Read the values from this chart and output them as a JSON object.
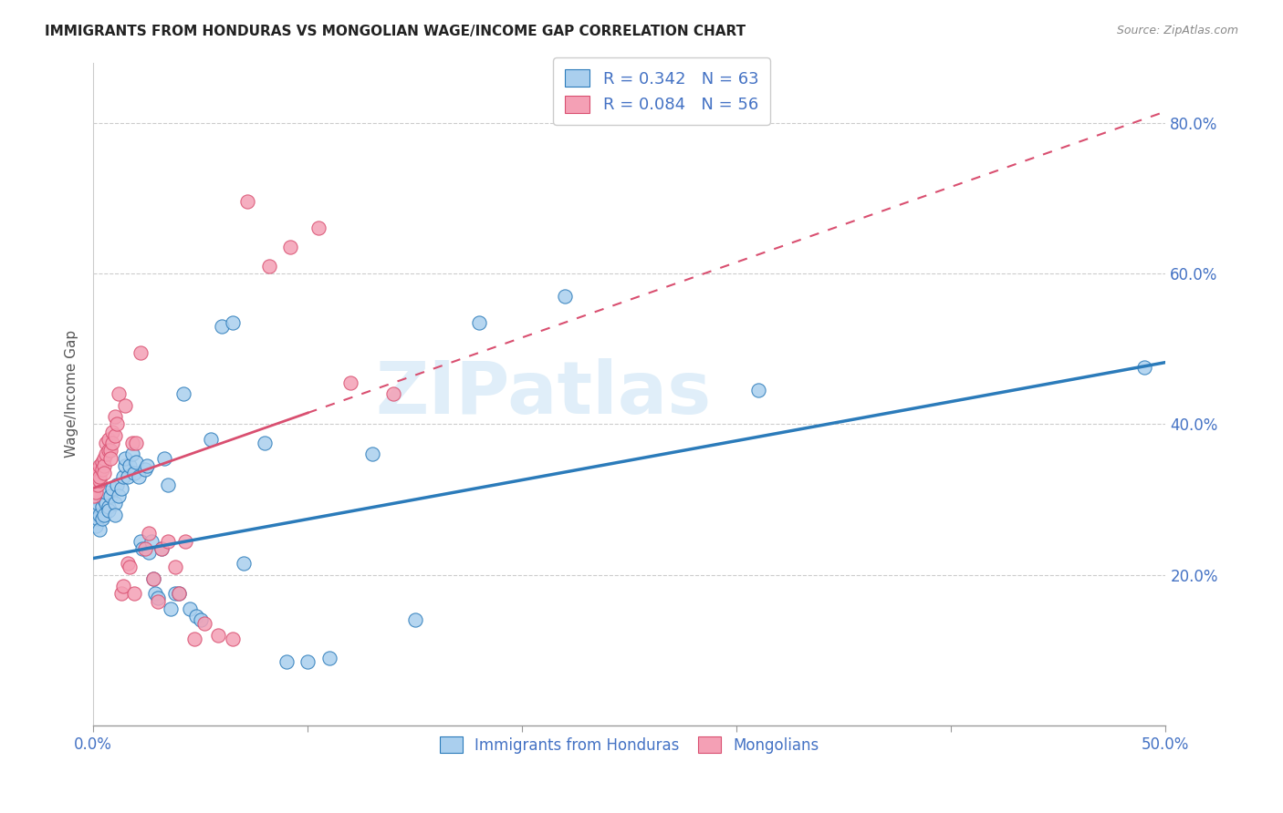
{
  "title": "IMMIGRANTS FROM HONDURAS VS MONGOLIAN WAGE/INCOME GAP CORRELATION CHART",
  "source": "Source: ZipAtlas.com",
  "ylabel": "Wage/Income Gap",
  "yticks": [
    "20.0%",
    "40.0%",
    "60.0%",
    "80.0%"
  ],
  "ytick_vals": [
    0.2,
    0.4,
    0.6,
    0.8
  ],
  "legend1_label": "R = 0.342   N = 63",
  "legend2_label": "R = 0.084   N = 56",
  "legend_bottom_label1": "Immigrants from Honduras",
  "legend_bottom_label2": "Mongolians",
  "blue_color": "#aacfee",
  "pink_color": "#f4a0b5",
  "blue_line_color": "#2b7bba",
  "pink_line_color": "#d94f70",
  "tick_color": "#4472c4",
  "watermark_text": "ZIPatlas",
  "blue_R": 0.342,
  "blue_N": 63,
  "pink_R": 0.084,
  "pink_N": 56,
  "blue_line_intercept": 0.222,
  "blue_line_slope": 0.52,
  "pink_line_intercept": 0.315,
  "pink_line_slope": 1.0,
  "blue_scatter_x": [
    0.001,
    0.001,
    0.002,
    0.002,
    0.003,
    0.003,
    0.004,
    0.004,
    0.005,
    0.005,
    0.006,
    0.006,
    0.007,
    0.007,
    0.008,
    0.009,
    0.01,
    0.01,
    0.011,
    0.012,
    0.013,
    0.014,
    0.015,
    0.015,
    0.016,
    0.017,
    0.018,
    0.019,
    0.02,
    0.021,
    0.022,
    0.023,
    0.024,
    0.025,
    0.026,
    0.027,
    0.028,
    0.029,
    0.03,
    0.032,
    0.033,
    0.035,
    0.036,
    0.038,
    0.04,
    0.042,
    0.045,
    0.048,
    0.05,
    0.055,
    0.06,
    0.065,
    0.07,
    0.08,
    0.09,
    0.1,
    0.11,
    0.13,
    0.15,
    0.18,
    0.22,
    0.31,
    0.49
  ],
  "blue_scatter_y": [
    0.285,
    0.265,
    0.275,
    0.295,
    0.28,
    0.26,
    0.29,
    0.275,
    0.3,
    0.28,
    0.295,
    0.31,
    0.29,
    0.285,
    0.305,
    0.315,
    0.295,
    0.28,
    0.32,
    0.305,
    0.315,
    0.33,
    0.345,
    0.355,
    0.33,
    0.345,
    0.36,
    0.335,
    0.35,
    0.33,
    0.245,
    0.235,
    0.34,
    0.345,
    0.23,
    0.245,
    0.195,
    0.175,
    0.17,
    0.235,
    0.355,
    0.32,
    0.155,
    0.175,
    0.175,
    0.44,
    0.155,
    0.145,
    0.14,
    0.38,
    0.53,
    0.535,
    0.215,
    0.375,
    0.085,
    0.085,
    0.09,
    0.36,
    0.14,
    0.535,
    0.57,
    0.445,
    0.475
  ],
  "pink_scatter_x": [
    0.0005,
    0.0005,
    0.001,
    0.001,
    0.001,
    0.002,
    0.002,
    0.002,
    0.003,
    0.003,
    0.003,
    0.004,
    0.004,
    0.005,
    0.005,
    0.005,
    0.006,
    0.006,
    0.007,
    0.007,
    0.008,
    0.008,
    0.009,
    0.009,
    0.01,
    0.01,
    0.011,
    0.012,
    0.013,
    0.014,
    0.015,
    0.016,
    0.017,
    0.018,
    0.019,
    0.02,
    0.022,
    0.024,
    0.026,
    0.028,
    0.03,
    0.032,
    0.035,
    0.038,
    0.04,
    0.043,
    0.047,
    0.052,
    0.058,
    0.065,
    0.072,
    0.082,
    0.092,
    0.105,
    0.12,
    0.14
  ],
  "pink_scatter_y": [
    0.315,
    0.305,
    0.33,
    0.32,
    0.31,
    0.34,
    0.335,
    0.32,
    0.345,
    0.325,
    0.33,
    0.35,
    0.34,
    0.355,
    0.345,
    0.335,
    0.375,
    0.36,
    0.38,
    0.365,
    0.365,
    0.355,
    0.39,
    0.375,
    0.41,
    0.385,
    0.4,
    0.44,
    0.175,
    0.185,
    0.425,
    0.215,
    0.21,
    0.375,
    0.175,
    0.375,
    0.495,
    0.235,
    0.255,
    0.195,
    0.165,
    0.235,
    0.245,
    0.21,
    0.175,
    0.245,
    0.115,
    0.135,
    0.12,
    0.115,
    0.695,
    0.61,
    0.635,
    0.66,
    0.455,
    0.44
  ]
}
